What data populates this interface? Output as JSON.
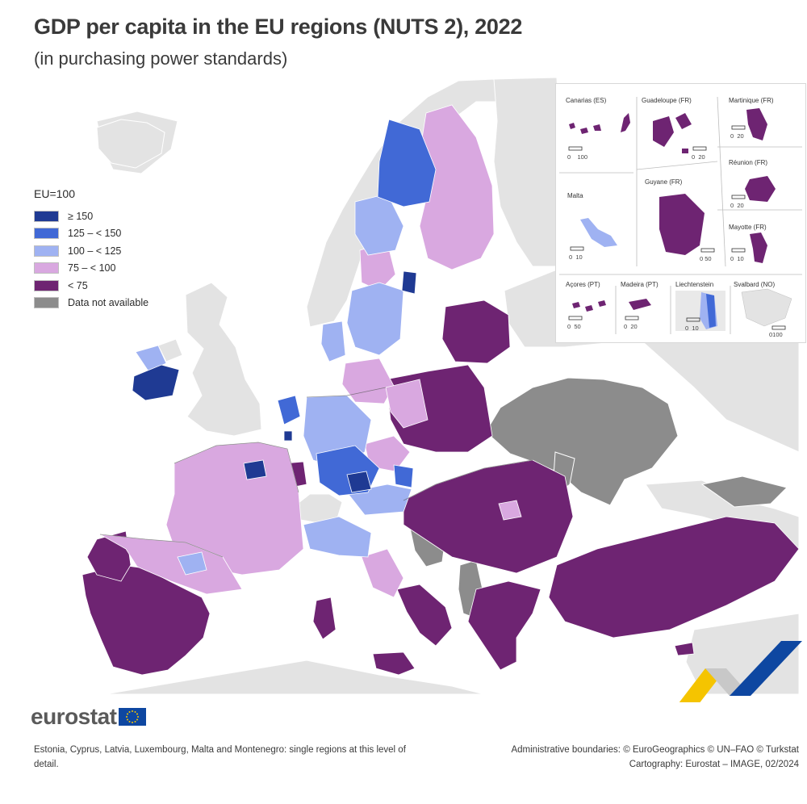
{
  "header": {
    "title": "GDP per capita in the EU regions (NUTS 2), 2022",
    "subtitle": "(in purchasing power standards)"
  },
  "legend": {
    "title": "EU=100",
    "items": [
      {
        "label": "≥ 150",
        "color": "#1f3a93"
      },
      {
        "label": "125 – < 150",
        "color": "#4169d6"
      },
      {
        "label": "100 – < 125",
        "color": "#9fb2f2"
      },
      {
        "label": "75 – < 100",
        "color": "#d9a8e0"
      },
      {
        "label": "< 75",
        "color": "#6e2472"
      },
      {
        "label": "Data not available",
        "color": "#8c8c8c"
      }
    ]
  },
  "colors": {
    "non_eu_land": "#e3e3e3",
    "sea": "#ffffff",
    "border": "#5a5a5a",
    "accent_yellow": "#f5c400",
    "accent_blue": "#0e47a1"
  },
  "insets": [
    {
      "label": "Canarias (ES)",
      "scale": [
        "0",
        "100"
      ]
    },
    {
      "label": "Guadeloupe (FR)",
      "scale": [
        "0",
        "20"
      ]
    },
    {
      "label": "Martinique (FR)",
      "scale": [
        "0",
        "20"
      ]
    },
    {
      "label": "Réunion (FR)",
      "scale": [
        "0",
        "20"
      ]
    },
    {
      "label": "Malta",
      "scale": [
        "0",
        "10"
      ]
    },
    {
      "label": "Guyane (FR)",
      "scale": [
        "0",
        "50"
      ]
    },
    {
      "label": "Mayotte (FR)",
      "scale": [
        "0",
        "10"
      ]
    },
    {
      "label": "Açores (PT)",
      "scale": [
        "0",
        "50"
      ]
    },
    {
      "label": "Madeira (PT)",
      "scale": [
        "0",
        "20"
      ]
    },
    {
      "label": "Liechtenstein",
      "scale": [
        "0",
        "10"
      ]
    },
    {
      "label": "Svalbard (NO)",
      "scale": [
        "0",
        "100"
      ]
    }
  ],
  "brand": {
    "logo": "eurostat",
    "flag_icon": "eu-flag-icon"
  },
  "footer": {
    "note": "Estonia, Cyprus, Latvia, Luxembourg, Malta and Montenegro: single regions at this level of detail.",
    "credits_line1": "Administrative boundaries: © EuroGeographics © UN–FAO © Turkstat",
    "credits_line2": "Cartography: Eurostat – IMAGE, 02/2024"
  }
}
